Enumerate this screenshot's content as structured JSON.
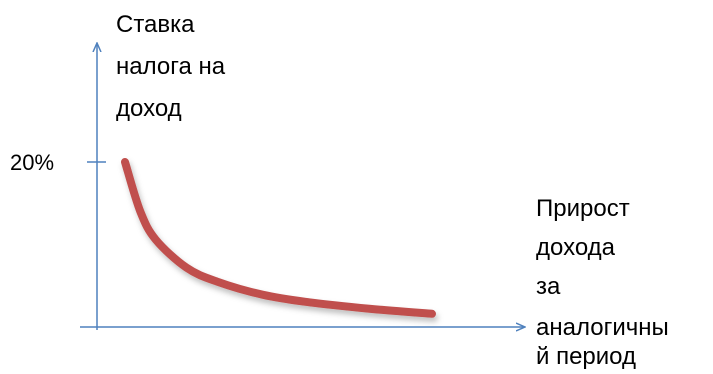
{
  "chart_data": {
    "type": "line",
    "title": "",
    "ylabel_lines": [
      "Ставка",
      "налога на",
      "доход"
    ],
    "xlabel_lines": [
      "Прирост",
      "дохода",
      "за",
      "аналогичны",
      "й период"
    ],
    "y_ticks": [
      "20%"
    ],
    "grid": false,
    "legend": "none",
    "series": [
      {
        "shape": "decreasing convex curve",
        "x": [
          0,
          0.05,
          0.1,
          0.2,
          0.3,
          0.45,
          0.6,
          0.8,
          1.0
        ],
        "y": [
          20,
          14,
          10.6,
          7.2,
          5.5,
          3.9,
          3.0,
          2.2,
          1.6
        ],
        "y_units_note": "relative"
      }
    ],
    "colors": {
      "axis": "#4f81bd",
      "curve": "#c0504d"
    }
  }
}
